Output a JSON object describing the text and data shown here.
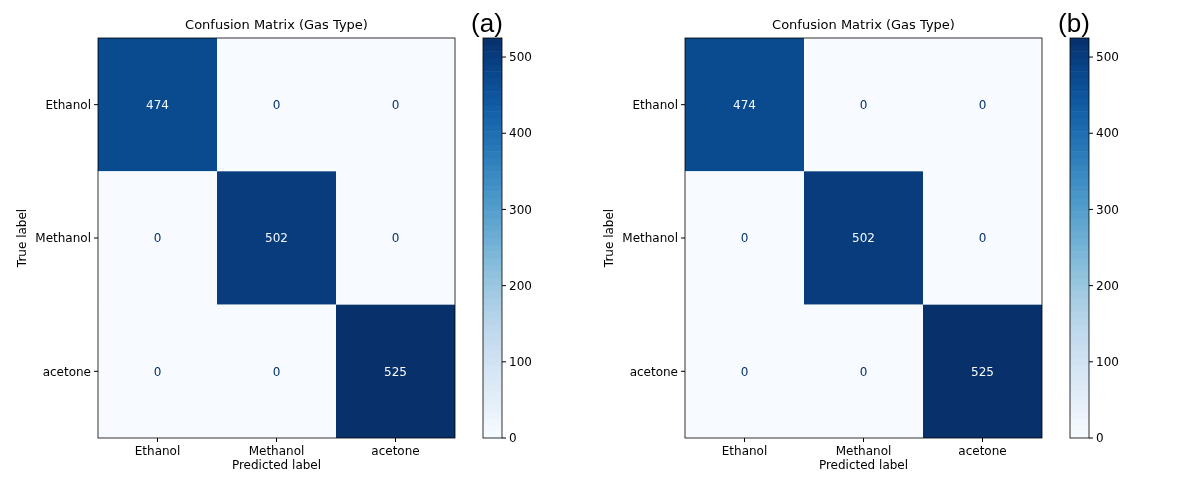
{
  "chart_data": [
    {
      "type": "heatmap",
      "title": "Confusion Matrix (Gas Type)",
      "xlabel": "Predicted label",
      "ylabel": "True label",
      "categories": [
        "Ethanol",
        "Methanol",
        "acetone"
      ],
      "y_categories": [
        "Ethanol",
        "Methanol",
        "acetone"
      ],
      "cells": [
        [
          474,
          0,
          0
        ],
        [
          0,
          502,
          0
        ],
        [
          0,
          0,
          525
        ]
      ],
      "data_labels": true,
      "clim": [
        0,
        525
      ],
      "cticks": [
        0,
        100,
        200,
        300,
        400,
        500
      ],
      "annotations": [
        "(a)"
      ]
    },
    {
      "type": "heatmap",
      "title": "Confusion Matrix (Gas Type)",
      "xlabel": "Predicted label",
      "ylabel": "True label",
      "categories": [
        "Ethanol",
        "Methanol",
        "acetone"
      ],
      "y_categories": [
        "Ethanol",
        "Methanol",
        "acetone"
      ],
      "cells": [
        [
          474,
          0,
          0
        ],
        [
          0,
          502,
          0
        ],
        [
          0,
          0,
          525
        ]
      ],
      "data_labels": true,
      "clim": [
        0,
        525
      ],
      "cticks": [
        0,
        100,
        200,
        300,
        400,
        500
      ],
      "annotations": [
        "(b)"
      ]
    }
  ]
}
